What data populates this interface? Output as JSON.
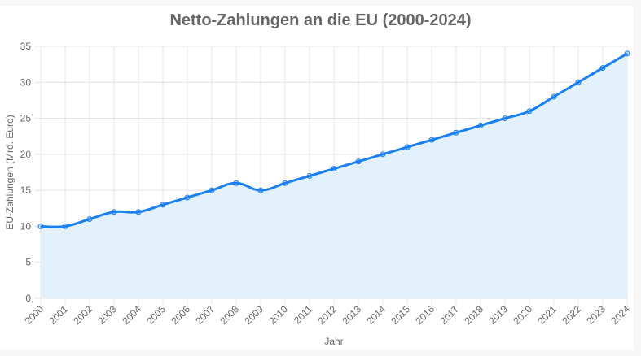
{
  "chart_data": {
    "type": "line",
    "title": "Netto-Zahlungen an die EU (2000-2024)",
    "xlabel": "Jahr",
    "ylabel": "EU-Zahlungen (Mrd. Euro)",
    "ylim": [
      0,
      35
    ],
    "yticks": [
      0,
      5,
      10,
      15,
      20,
      25,
      30,
      35
    ],
    "grid": true,
    "legend": "none",
    "fill": true,
    "categories": [
      "2000",
      "2001",
      "2002",
      "2003",
      "2004",
      "2005",
      "2006",
      "2007",
      "2008",
      "2009",
      "2010",
      "2011",
      "2012",
      "2013",
      "2014",
      "2015",
      "2016",
      "2017",
      "2018",
      "2019",
      "2020",
      "2021",
      "2022",
      "2023",
      "2024"
    ],
    "series": [
      {
        "name": "EU-Zahlungen (Mrd. Euro)",
        "values": [
          10,
          10,
          11,
          12,
          12,
          13,
          14,
          15,
          16,
          15,
          16,
          17,
          18,
          19,
          20,
          21,
          22,
          23,
          24,
          25,
          26,
          28,
          30,
          32,
          34
        ],
        "color": "#1a7ff0",
        "fill_color": "#e3f1fd"
      }
    ]
  }
}
